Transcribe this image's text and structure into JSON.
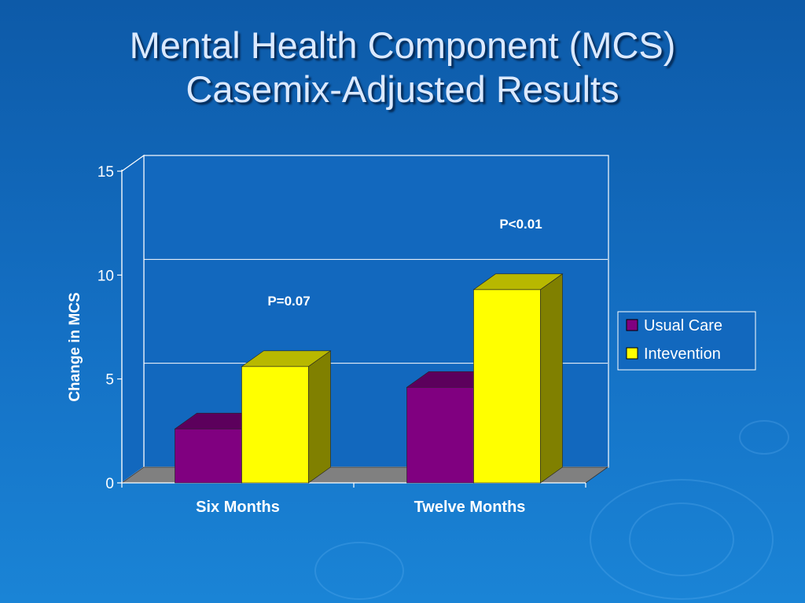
{
  "slide": {
    "title_line1": "Mental Health Component (MCS)",
    "title_line2": "Casemix-Adjusted Results"
  },
  "colors": {
    "usual_care": "#800080",
    "intervention": "#ffff00",
    "floor": "#808080",
    "background": "#1268be"
  },
  "chart_data": {
    "type": "bar",
    "categories": [
      "Six Months",
      "Twelve Months"
    ],
    "series": [
      {
        "name": "Usual Care",
        "values": [
          2.6,
          4.6
        ],
        "color": "#800080"
      },
      {
        "name": "Intevention",
        "values": [
          5.6,
          9.3
        ],
        "color": "#ffff00"
      }
    ],
    "ylabel": "Change in MCS",
    "xlabel": "",
    "ylim": [
      0,
      15
    ],
    "yticks": [
      0,
      5,
      10,
      15
    ],
    "grid": true,
    "legend": "right",
    "annotations": [
      "P=0.07",
      "P<0.01"
    ],
    "three_d": true
  }
}
